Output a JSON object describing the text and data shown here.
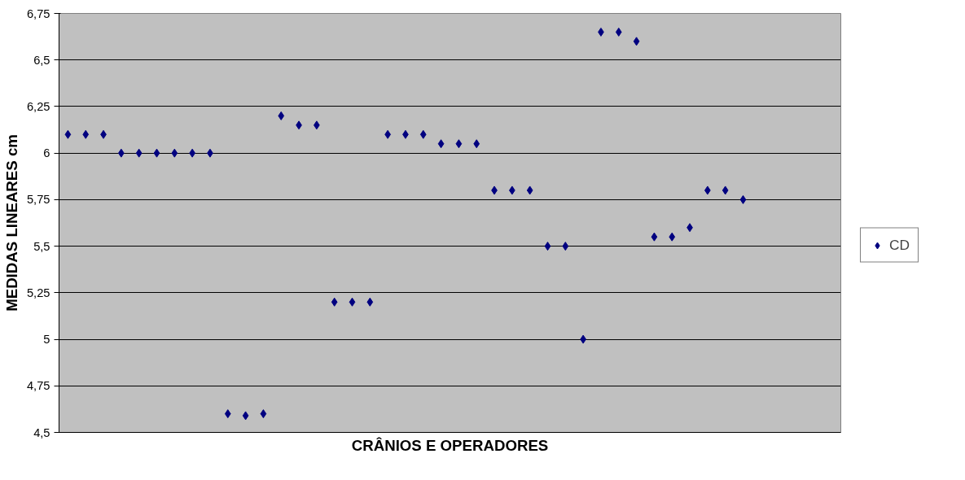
{
  "chart_data": {
    "type": "scatter",
    "xlabel": "CRÂNIOS E OPERADORES",
    "ylabel": "MEDIDAS LINEARES cm",
    "categories": [
      null,
      null,
      null,
      null,
      null,
      null,
      null,
      null,
      null,
      null,
      null,
      null,
      null,
      null,
      null,
      null,
      null,
      null,
      null,
      null,
      null,
      null,
      null,
      null,
      null,
      null,
      null,
      null,
      null,
      null,
      null,
      null,
      null,
      null,
      null,
      null,
      null,
      null,
      null,
      null,
      null,
      null,
      null,
      null
    ],
    "series": [
      {
        "name": "CD",
        "color": "#000080",
        "values": [
          6.1,
          6.1,
          6.1,
          6.0,
          6.0,
          6.0,
          6.0,
          6.0,
          6.0,
          4.6,
          4.59,
          4.6,
          6.2,
          6.15,
          6.15,
          5.2,
          5.2,
          5.2,
          6.1,
          6.1,
          6.1,
          6.05,
          6.05,
          6.05,
          5.8,
          5.8,
          5.8,
          5.5,
          5.5,
          5.0,
          6.65,
          6.65,
          6.6,
          5.55,
          5.55,
          5.6,
          5.8,
          5.8,
          5.75,
          null,
          null,
          null,
          null,
          null
        ]
      }
    ],
    "ylim": [
      4.5,
      6.75
    ],
    "yticks": [
      {
        "value": 4.5,
        "label": "4,5"
      },
      {
        "value": 4.75,
        "label": "4,75"
      },
      {
        "value": 5,
        "label": "5"
      },
      {
        "value": 5.25,
        "label": "5,25"
      },
      {
        "value": 5.5,
        "label": "5,5"
      },
      {
        "value": 5.75,
        "label": "5,75"
      },
      {
        "value": 6,
        "label": "6"
      },
      {
        "value": 6.25,
        "label": "6,25"
      },
      {
        "value": 6.5,
        "label": "6,5"
      },
      {
        "value": 6.75,
        "label": "6,75"
      }
    ],
    "tick_labels": "y",
    "grid": "y",
    "legend": "right",
    "marker": "diamond"
  }
}
